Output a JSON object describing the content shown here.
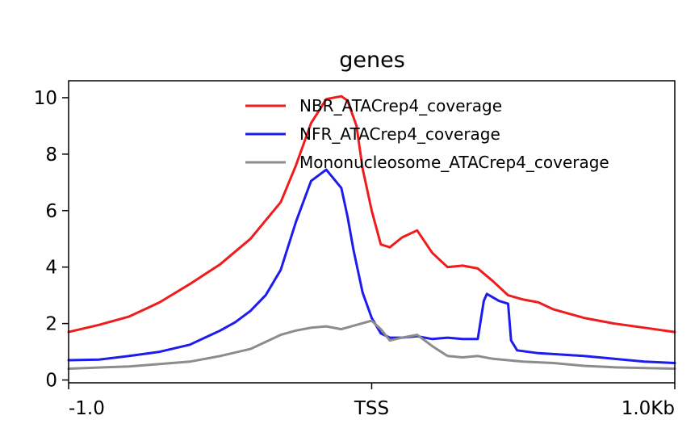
{
  "chart_data": {
    "type": "line",
    "title": "genes",
    "xlabel": "",
    "ylabel": "",
    "x_ticks": [
      {
        "value": -1.0,
        "label": "-1.0"
      },
      {
        "value": 0.0,
        "label": "TSS"
      },
      {
        "value": 1.0,
        "label": "1.0Kb"
      }
    ],
    "y_ticks": [
      0,
      2,
      4,
      6,
      8,
      10
    ],
    "xlim": [
      -1.0,
      1.0
    ],
    "ylim": [
      -0.1,
      10.6
    ],
    "grid": false,
    "legend_position": "top-right",
    "series": [
      {
        "name": "NBR_ATACrep4_coverage",
        "color": "#ee1c1c",
        "x": [
          -1.0,
          -0.9,
          -0.8,
          -0.7,
          -0.6,
          -0.5,
          -0.4,
          -0.3,
          -0.25,
          -0.2,
          -0.15,
          -0.1,
          -0.08,
          -0.05,
          -0.03,
          0.0,
          0.03,
          0.06,
          0.1,
          0.15,
          0.2,
          0.25,
          0.3,
          0.35,
          0.4,
          0.45,
          0.5,
          0.55,
          0.6,
          0.7,
          0.8,
          0.9,
          1.0
        ],
        "y": [
          1.7,
          1.95,
          2.25,
          2.75,
          3.4,
          4.1,
          5.0,
          6.3,
          7.6,
          9.1,
          9.95,
          10.05,
          9.9,
          9.0,
          7.5,
          6.0,
          4.8,
          4.7,
          5.05,
          5.3,
          4.5,
          4.0,
          4.05,
          3.95,
          3.5,
          3.0,
          2.85,
          2.75,
          2.5,
          2.2,
          2.0,
          1.85,
          1.7
        ]
      },
      {
        "name": "NFR_ATACrep4_coverage",
        "color": "#1c1cee",
        "x": [
          -1.0,
          -0.9,
          -0.8,
          -0.7,
          -0.6,
          -0.5,
          -0.45,
          -0.4,
          -0.35,
          -0.3,
          -0.25,
          -0.2,
          -0.15,
          -0.1,
          -0.08,
          -0.06,
          -0.03,
          0.0,
          0.03,
          0.06,
          0.1,
          0.15,
          0.2,
          0.25,
          0.3,
          0.35,
          0.37,
          0.38,
          0.42,
          0.45,
          0.46,
          0.48,
          0.55,
          0.7,
          0.8,
          0.9,
          1.0
        ],
        "y": [
          0.7,
          0.72,
          0.85,
          1.0,
          1.25,
          1.75,
          2.05,
          2.45,
          3.0,
          3.9,
          5.6,
          7.05,
          7.45,
          6.8,
          5.8,
          4.6,
          3.1,
          2.2,
          1.65,
          1.5,
          1.5,
          1.55,
          1.45,
          1.5,
          1.45,
          1.45,
          2.8,
          3.05,
          2.8,
          2.7,
          1.4,
          1.05,
          0.95,
          0.85,
          0.75,
          0.65,
          0.6
        ]
      },
      {
        "name": "Mononucleosome_ATACrep4_coverage",
        "color": "#8c8c8c",
        "x": [
          -1.0,
          -0.8,
          -0.6,
          -0.5,
          -0.4,
          -0.3,
          -0.25,
          -0.2,
          -0.15,
          -0.1,
          -0.05,
          0.0,
          0.03,
          0.06,
          0.1,
          0.15,
          0.2,
          0.25,
          0.3,
          0.35,
          0.4,
          0.5,
          0.6,
          0.7,
          0.8,
          1.0
        ],
        "y": [
          0.4,
          0.48,
          0.65,
          0.85,
          1.1,
          1.6,
          1.75,
          1.85,
          1.9,
          1.8,
          1.95,
          2.1,
          1.8,
          1.4,
          1.5,
          1.6,
          1.2,
          0.85,
          0.8,
          0.85,
          0.75,
          0.65,
          0.6,
          0.5,
          0.45,
          0.4
        ]
      }
    ]
  }
}
